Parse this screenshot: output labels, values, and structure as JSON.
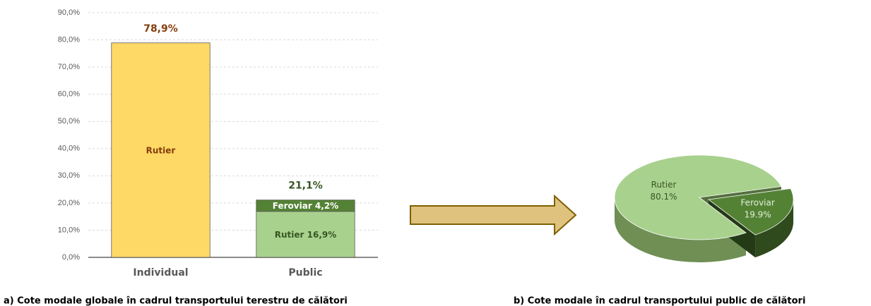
{
  "chart_data": [
    {
      "type": "bar",
      "stacked": true,
      "categories": [
        "Individual",
        "Public"
      ],
      "series": [
        {
          "name": "Rutier",
          "colors": [
            "#ffd966",
            "#a9d18e"
          ],
          "values": [
            78.9,
            16.9
          ],
          "value_labels": [
            "Rutier",
            "Rutier 16,9%"
          ],
          "label_colors": [
            "#843c0c",
            "#375623"
          ]
        },
        {
          "name": "Feroviar",
          "color": "#548235",
          "values": [
            null,
            4.2
          ],
          "value_labels": [
            null,
            "Feroviar 4,2%"
          ],
          "label_colors": [
            null,
            "#ffffff"
          ]
        }
      ],
      "totals": [
        78.9,
        21.1
      ],
      "total_labels": [
        "78,9%",
        "21,1%"
      ],
      "total_label_colors": [
        "#843c0c",
        "#375623"
      ],
      "ylim": [
        0,
        90
      ],
      "yticks": [
        {
          "value": 0,
          "label": "0,0%"
        },
        {
          "value": 10,
          "label": "10,0%"
        },
        {
          "value": 20,
          "label": "20,0%"
        },
        {
          "value": 30,
          "label": "30,0%"
        },
        {
          "value": 40,
          "label": "40,0%"
        },
        {
          "value": 50,
          "label": "50,0%"
        },
        {
          "value": 60,
          "label": "60,0%"
        },
        {
          "value": 70,
          "label": "70,0%"
        },
        {
          "value": 80,
          "label": "80,0%"
        },
        {
          "value": 90,
          "label": "90,0%"
        }
      ],
      "grid": true,
      "caption": "a) Cote modale globale în cadrul transportului terestru de călători"
    },
    {
      "type": "pie",
      "style": "3d",
      "exploded": [
        false,
        true
      ],
      "categories": [
        "Rutier",
        "Feroviar"
      ],
      "values": [
        80.1,
        19.9
      ],
      "value_labels": [
        "80.1%",
        "19.9%"
      ],
      "colors": [
        "#a9d18e",
        "#548235"
      ],
      "label_colors": [
        "#375623",
        "#e2efda"
      ],
      "caption": "b) Cote modale în cadrul transportului public de călători"
    }
  ]
}
